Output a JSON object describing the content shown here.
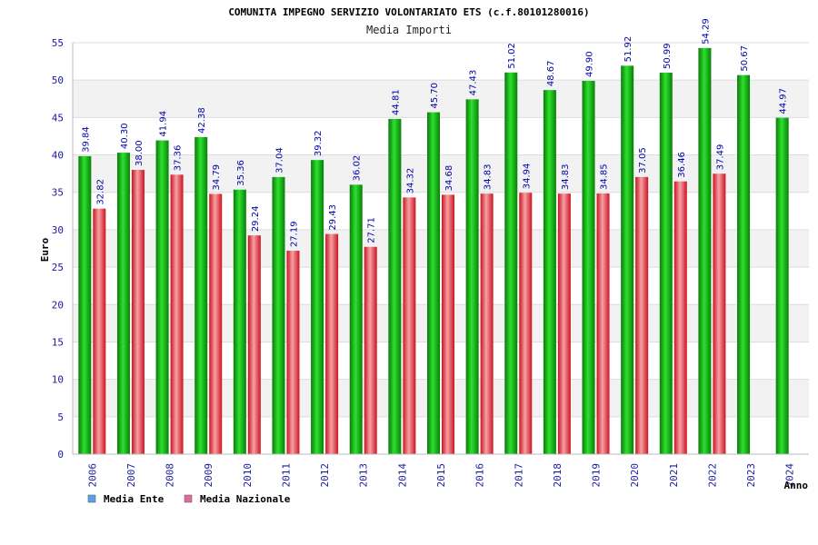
{
  "chart_data": {
    "type": "bar",
    "title": "COMUNITA IMPEGNO SERVIZIO VOLONTARIATO ETS (c.f.80101280016)",
    "subtitle": "Media Importi",
    "ylabel": "Euro",
    "xlabel": "Anno",
    "ylim": [
      0,
      55
    ],
    "yticks": [
      "0",
      "5",
      "10",
      "15",
      "20",
      "25",
      "30",
      "35",
      "40",
      "45",
      "50",
      "55"
    ],
    "grid": true,
    "legend_position": "bottom-left",
    "categories": [
      "2006",
      "2007",
      "2008",
      "2009",
      "2010",
      "2011",
      "2012",
      "2013",
      "2014",
      "2015",
      "2016",
      "2017",
      "2018",
      "2019",
      "2020",
      "2021",
      "2022",
      "2023",
      "2024"
    ],
    "series": [
      {
        "name": "Media Ente",
        "color": "#1fb51f",
        "legend_color": "#5aa0e6",
        "values": [
          39.84,
          40.3,
          41.94,
          42.38,
          35.36,
          37.04,
          39.32,
          36.02,
          44.81,
          45.7,
          47.43,
          51.02,
          48.67,
          49.9,
          51.92,
          50.99,
          54.29,
          50.67,
          44.97
        ],
        "labels": [
          "39.84",
          "40.30",
          "41.94",
          "42.38",
          "35.36",
          "37.04",
          "39.32",
          "36.02",
          "44.81",
          "45.70",
          "47.43",
          "51.02",
          "48.67",
          "49.90",
          "51.92",
          "50.99",
          "54.29",
          "50.67",
          "44.97"
        ]
      },
      {
        "name": "Media Nazionale",
        "color": "#e8414a",
        "legend_color": "#e36aa0",
        "values": [
          32.82,
          38.0,
          37.36,
          34.79,
          29.24,
          27.19,
          29.43,
          27.71,
          34.32,
          34.68,
          34.83,
          34.94,
          34.83,
          34.85,
          37.05,
          36.46,
          37.49,
          null,
          null
        ],
        "labels": [
          "32.82",
          "38.00",
          "37.36",
          "34.79",
          "29.24",
          "27.19",
          "29.43",
          "27.71",
          "34.32",
          "34.68",
          "34.83",
          "34.94",
          "34.83",
          "34.85",
          "37.05",
          "36.46",
          "37.49",
          "",
          ""
        ]
      }
    ]
  }
}
